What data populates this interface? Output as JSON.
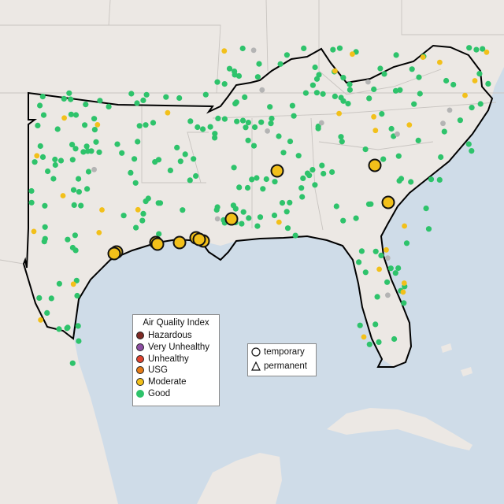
{
  "legend_aqi": {
    "title": "Air Quality Index",
    "items": [
      {
        "label": "Hazardous",
        "color": "#7e2a24"
      },
      {
        "label": "Very Unhealthy",
        "color": "#8d4ea3"
      },
      {
        "label": "Unhealthy",
        "color": "#e0432f"
      },
      {
        "label": "USG",
        "color": "#e57b16"
      },
      {
        "label": "Moderate",
        "color": "#f2c01a"
      },
      {
        "label": "Good",
        "color": "#2ec36b"
      }
    ]
  },
  "legend_type": {
    "items": [
      {
        "label": "temporary",
        "icon": "circle-icon"
      },
      {
        "label": "permanent",
        "icon": "triangle-icon"
      }
    ]
  },
  "colors": {
    "good": "#2ec36b",
    "moderate": "#f2c01a",
    "unknown": "#b4b4b4",
    "land": "#ece8e4",
    "water": "#cfdce8"
  },
  "monitors": {
    "good_count": 260,
    "moderate_count": 30,
    "large_moderate_count": 12
  }
}
